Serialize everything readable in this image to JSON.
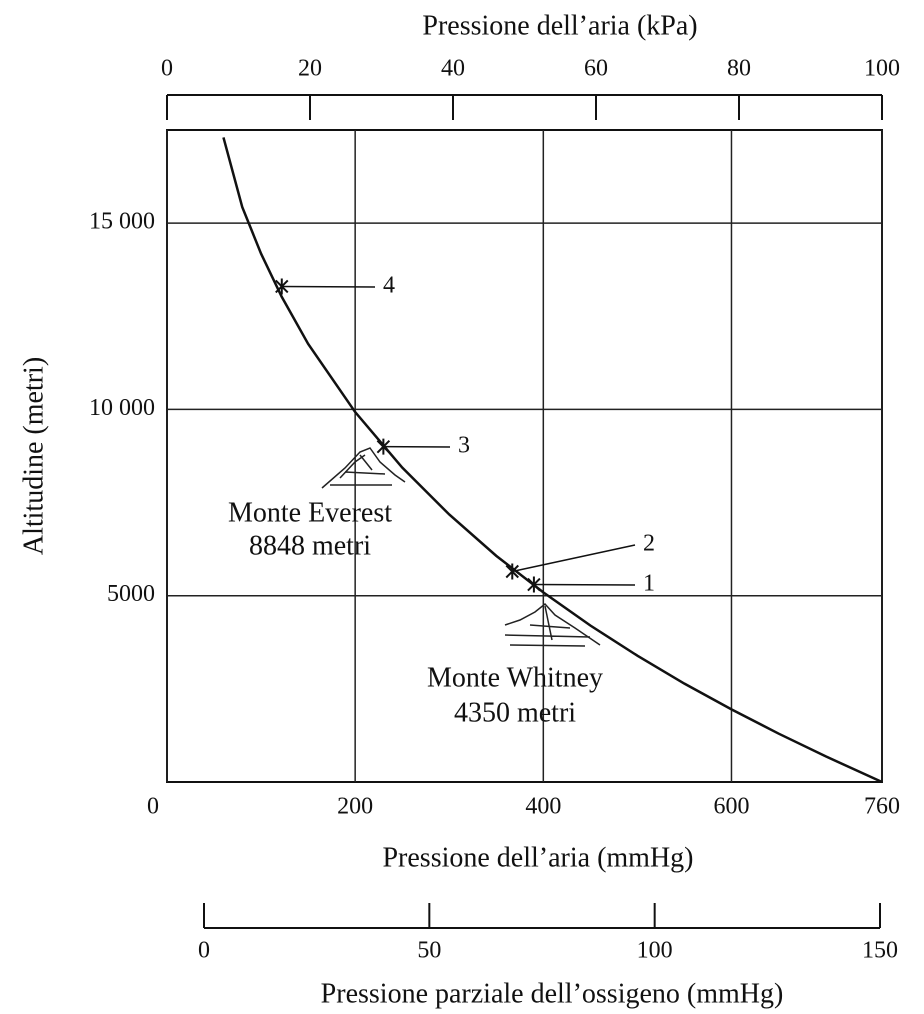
{
  "chart_data": {
    "type": "line",
    "x_label": "Pressione dell’aria (mmHg)",
    "y_label": "Altitudine (metri)",
    "x": [
      60,
      80,
      100,
      122,
      150,
      200,
      250,
      300,
      350,
      400,
      450,
      500,
      550,
      600,
      650,
      700,
      760
    ],
    "series": [
      {
        "color": "#111111",
        "values": [
          17300,
          15430,
          14180,
          13020,
          11760,
          9930,
          8440,
          7180,
          6070,
          5090,
          4200,
          3390,
          2640,
          1950,
          1300,
          690,
          0
        ]
      }
    ],
    "xlim": [
      0,
      760
    ],
    "xticks": [
      0,
      200,
      400,
      600,
      760
    ],
    "ylim": [
      0,
      17500
    ],
    "yticks": [
      5000,
      {
        "value": 10000,
        "label": "10 000"
      },
      {
        "value": 15000,
        "label": "15 000"
      }
    ],
    "grid": true,
    "top_axis": {
      "label": "Pressione dell’aria (kPa)",
      "lim": [
        0,
        100
      ],
      "ticks": [
        0,
        20,
        40,
        60,
        80,
        100
      ]
    },
    "oxygen_axis": {
      "label": "Pressione parziale dell’ossigeno (mmHg)",
      "lim": [
        0,
        150
      ],
      "ticks": [
        0,
        50,
        100,
        150
      ]
    },
    "points": [
      {
        "label": "1",
        "x": 390,
        "y": 5300
      },
      {
        "label": "2",
        "x": 367,
        "y": 5650
      },
      {
        "label": "3",
        "x": 230,
        "y": 9000
      },
      {
        "label": "4",
        "x": 122,
        "y": 13300
      }
    ],
    "annotations": [
      "Monte Everest",
      "8848 metri",
      "Monte Whitney",
      "4350 metri"
    ]
  }
}
